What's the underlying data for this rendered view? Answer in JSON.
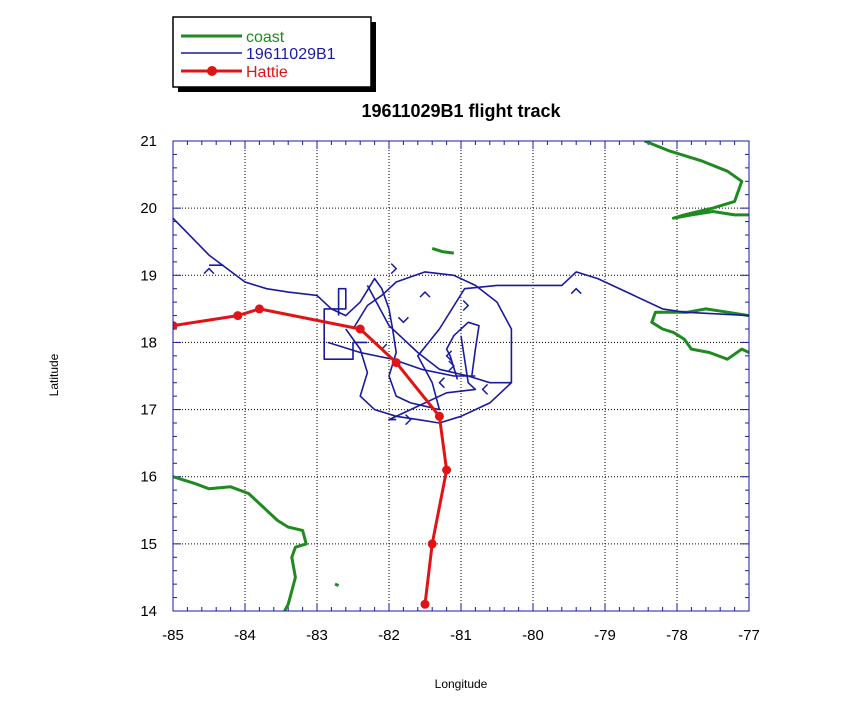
{
  "chart_data": {
    "type": "line",
    "title": "19611029B1 flight track",
    "xlabel": "Longitude",
    "ylabel": "Latitude",
    "xlim": [
      -85,
      -77
    ],
    "ylim": [
      14,
      21
    ],
    "x_ticks": [
      -85,
      -84,
      -83,
      -82,
      -81,
      -80,
      -79,
      -78,
      -77
    ],
    "y_ticks": [
      14,
      15,
      16,
      17,
      18,
      19,
      20,
      21
    ],
    "grid": true,
    "legend_position": "top-left, outside plot",
    "series": [
      {
        "name": "coast",
        "color": "#1f8a1f",
        "segments": [
          [
            [
              -85,
              16.0
            ],
            [
              -84.7,
              15.9
            ],
            [
              -84.5,
              15.82
            ],
            [
              -84.2,
              15.85
            ],
            [
              -83.95,
              15.75
            ],
            [
              -83.75,
              15.55
            ],
            [
              -83.55,
              15.35
            ],
            [
              -83.4,
              15.25
            ],
            [
              -83.2,
              15.2
            ],
            [
              -83.15,
              15.0
            ],
            [
              -83.3,
              14.95
            ],
            [
              -83.35,
              14.8
            ],
            [
              -83.3,
              14.5
            ],
            [
              -83.35,
              14.3
            ],
            [
              -83.4,
              14.1
            ],
            [
              -83.45,
              14.0
            ]
          ],
          [
            [
              -78.45,
              21.0
            ],
            [
              -78.1,
              20.85
            ],
            [
              -77.65,
              20.7
            ],
            [
              -77.3,
              20.55
            ],
            [
              -77.1,
              20.4
            ],
            [
              -77.2,
              20.1
            ],
            [
              -77.5,
              20.0
            ],
            [
              -77.7,
              19.95
            ],
            [
              -77.9,
              19.9
            ],
            [
              -78.05,
              19.85
            ],
            [
              -77.8,
              19.9
            ],
            [
              -77.5,
              19.95
            ],
            [
              -77.2,
              19.9
            ],
            [
              -77.0,
              19.9
            ]
          ],
          [
            [
              -77.0,
              18.4
            ],
            [
              -77.3,
              18.45
            ],
            [
              -77.6,
              18.5
            ],
            [
              -77.85,
              18.45
            ],
            [
              -78.1,
              18.45
            ],
            [
              -78.3,
              18.45
            ],
            [
              -78.35,
              18.3
            ],
            [
              -78.2,
              18.2
            ],
            [
              -78.05,
              18.15
            ],
            [
              -77.9,
              18.05
            ],
            [
              -77.8,
              17.9
            ],
            [
              -77.55,
              17.85
            ],
            [
              -77.3,
              17.75
            ],
            [
              -77.1,
              17.9
            ],
            [
              -77.0,
              17.85
            ]
          ],
          [
            [
              -81.4,
              19.4
            ],
            [
              -81.25,
              19.35
            ],
            [
              -81.1,
              19.33
            ]
          ],
          [
            [
              -82.75,
              14.4
            ],
            [
              -82.7,
              14.38
            ]
          ]
        ]
      },
      {
        "name": "19611029B1",
        "color": "#1a1aa0",
        "segments": [
          [
            [
              -85.0,
              19.85
            ],
            [
              -84.5,
              19.3
            ],
            [
              -84.0,
              18.9
            ],
            [
              -83.7,
              18.8
            ],
            [
              -83.4,
              18.75
            ],
            [
              -83.0,
              18.7
            ],
            [
              -82.8,
              18.5
            ],
            [
              -82.6,
              18.4
            ],
            [
              -82.4,
              18.6
            ],
            [
              -82.2,
              18.95
            ],
            [
              -82.1,
              18.8
            ],
            [
              -82.0,
              18.5
            ],
            [
              -81.95,
              18.2
            ],
            [
              -81.9,
              17.85
            ],
            [
              -82.0,
              17.5
            ],
            [
              -81.9,
              17.2
            ],
            [
              -81.7,
              17.1
            ],
            [
              -81.5,
              17.05
            ],
            [
              -81.3,
              17.0
            ],
            [
              -81.4,
              17.4
            ],
            [
              -81.6,
              17.8
            ],
            [
              -81.3,
              18.2
            ],
            [
              -80.95,
              18.8
            ],
            [
              -80.5,
              18.85
            ],
            [
              -80.1,
              18.85
            ],
            [
              -79.6,
              18.85
            ],
            [
              -79.4,
              19.05
            ],
            [
              -79.1,
              18.95
            ],
            [
              -78.6,
              18.7
            ],
            [
              -78.2,
              18.5
            ],
            [
              -77.9,
              18.45
            ],
            [
              -77.0,
              18.4
            ]
          ],
          [
            [
              -84.5,
              19.15
            ],
            [
              -84.3,
              19.15
            ]
          ],
          [
            [
              -82.3,
              18.85
            ],
            [
              -82.0,
              18.25
            ],
            [
              -81.6,
              17.85
            ],
            [
              -81.3,
              17.6
            ],
            [
              -80.9,
              17.5
            ],
            [
              -80.6,
              17.4
            ],
            [
              -80.3,
              17.4
            ]
          ],
          [
            [
              -82.6,
              18.2
            ],
            [
              -82.4,
              17.9
            ],
            [
              -82.3,
              17.55
            ],
            [
              -82.4,
              17.2
            ],
            [
              -82.2,
              17.0
            ],
            [
              -81.9,
              16.9
            ],
            [
              -81.6,
              16.85
            ],
            [
              -81.3,
              16.8
            ],
            [
              -81.0,
              16.9
            ],
            [
              -80.8,
              17.0
            ],
            [
              -80.6,
              17.1
            ],
            [
              -80.3,
              17.4
            ],
            [
              -80.3,
              18.2
            ],
            [
              -80.5,
              18.6
            ],
            [
              -80.8,
              18.85
            ],
            [
              -81.1,
              19.0
            ],
            [
              -81.5,
              19.05
            ],
            [
              -81.9,
              18.9
            ],
            [
              -82.1,
              18.7
            ],
            [
              -82.3,
              18.55
            ],
            [
              -82.5,
              18.2
            ]
          ],
          [
            [
              -82.7,
              18.4
            ],
            [
              -82.7,
              18.8
            ],
            [
              -82.6,
              18.8
            ],
            [
              -82.6,
              18.5
            ],
            [
              -82.9,
              18.5
            ],
            [
              -82.9,
              17.75
            ],
            [
              -82.5,
              17.75
            ],
            [
              -82.5,
              18.0
            ],
            [
              -82.3,
              18.0
            ]
          ],
          [
            [
              -82.85,
              18.0
            ],
            [
              -82.4,
              17.85
            ],
            [
              -81.95,
              17.75
            ],
            [
              -81.55,
              17.6
            ],
            [
              -81.1,
              17.5
            ],
            [
              -80.8,
              17.5
            ]
          ],
          [
            [
              -81.05,
              17.45
            ],
            [
              -81.15,
              17.8
            ],
            [
              -81.2,
              17.9
            ],
            [
              -81.1,
              18.1
            ],
            [
              -80.9,
              18.3
            ],
            [
              -80.75,
              18.25
            ],
            [
              -80.8,
              17.9
            ],
            [
              -80.85,
              17.5
            ]
          ],
          [
            [
              -81.0,
              18.1
            ],
            [
              -80.9,
              17.4
            ],
            [
              -80.8,
              17.3
            ],
            [
              -81.2,
              17.25
            ],
            [
              -81.7,
              17.0
            ],
            [
              -82.0,
              16.85
            ],
            [
              -81.9,
              16.85
            ]
          ]
        ]
      },
      {
        "name": "Hattie",
        "color": "#e01414",
        "points": [
          [
            -85.0,
            18.25
          ],
          [
            -84.1,
            18.4
          ],
          [
            -83.8,
            18.5
          ],
          [
            -82.4,
            18.2
          ],
          [
            -81.9,
            17.7
          ],
          [
            -81.3,
            16.9
          ],
          [
            -81.2,
            16.1
          ],
          [
            -81.4,
            15.0
          ],
          [
            -81.5,
            14.1
          ]
        ]
      }
    ],
    "direction_arrows": [
      [
        -84.5,
        19.1,
        "up"
      ],
      [
        -81.9,
        19.1,
        "right"
      ],
      [
        -81.5,
        18.75,
        "up"
      ],
      [
        -81.8,
        18.3,
        "down"
      ],
      [
        -82.1,
        17.9,
        "down"
      ],
      [
        -81.2,
        17.8,
        "left"
      ],
      [
        -81.1,
        17.65,
        "right"
      ],
      [
        -80.7,
        17.3,
        "left"
      ],
      [
        -81.7,
        16.85,
        "right"
      ],
      [
        -79.4,
        18.8,
        "up"
      ],
      [
        -80.9,
        18.55,
        "right"
      ],
      [
        -81.3,
        17.4,
        "left"
      ]
    ]
  }
}
